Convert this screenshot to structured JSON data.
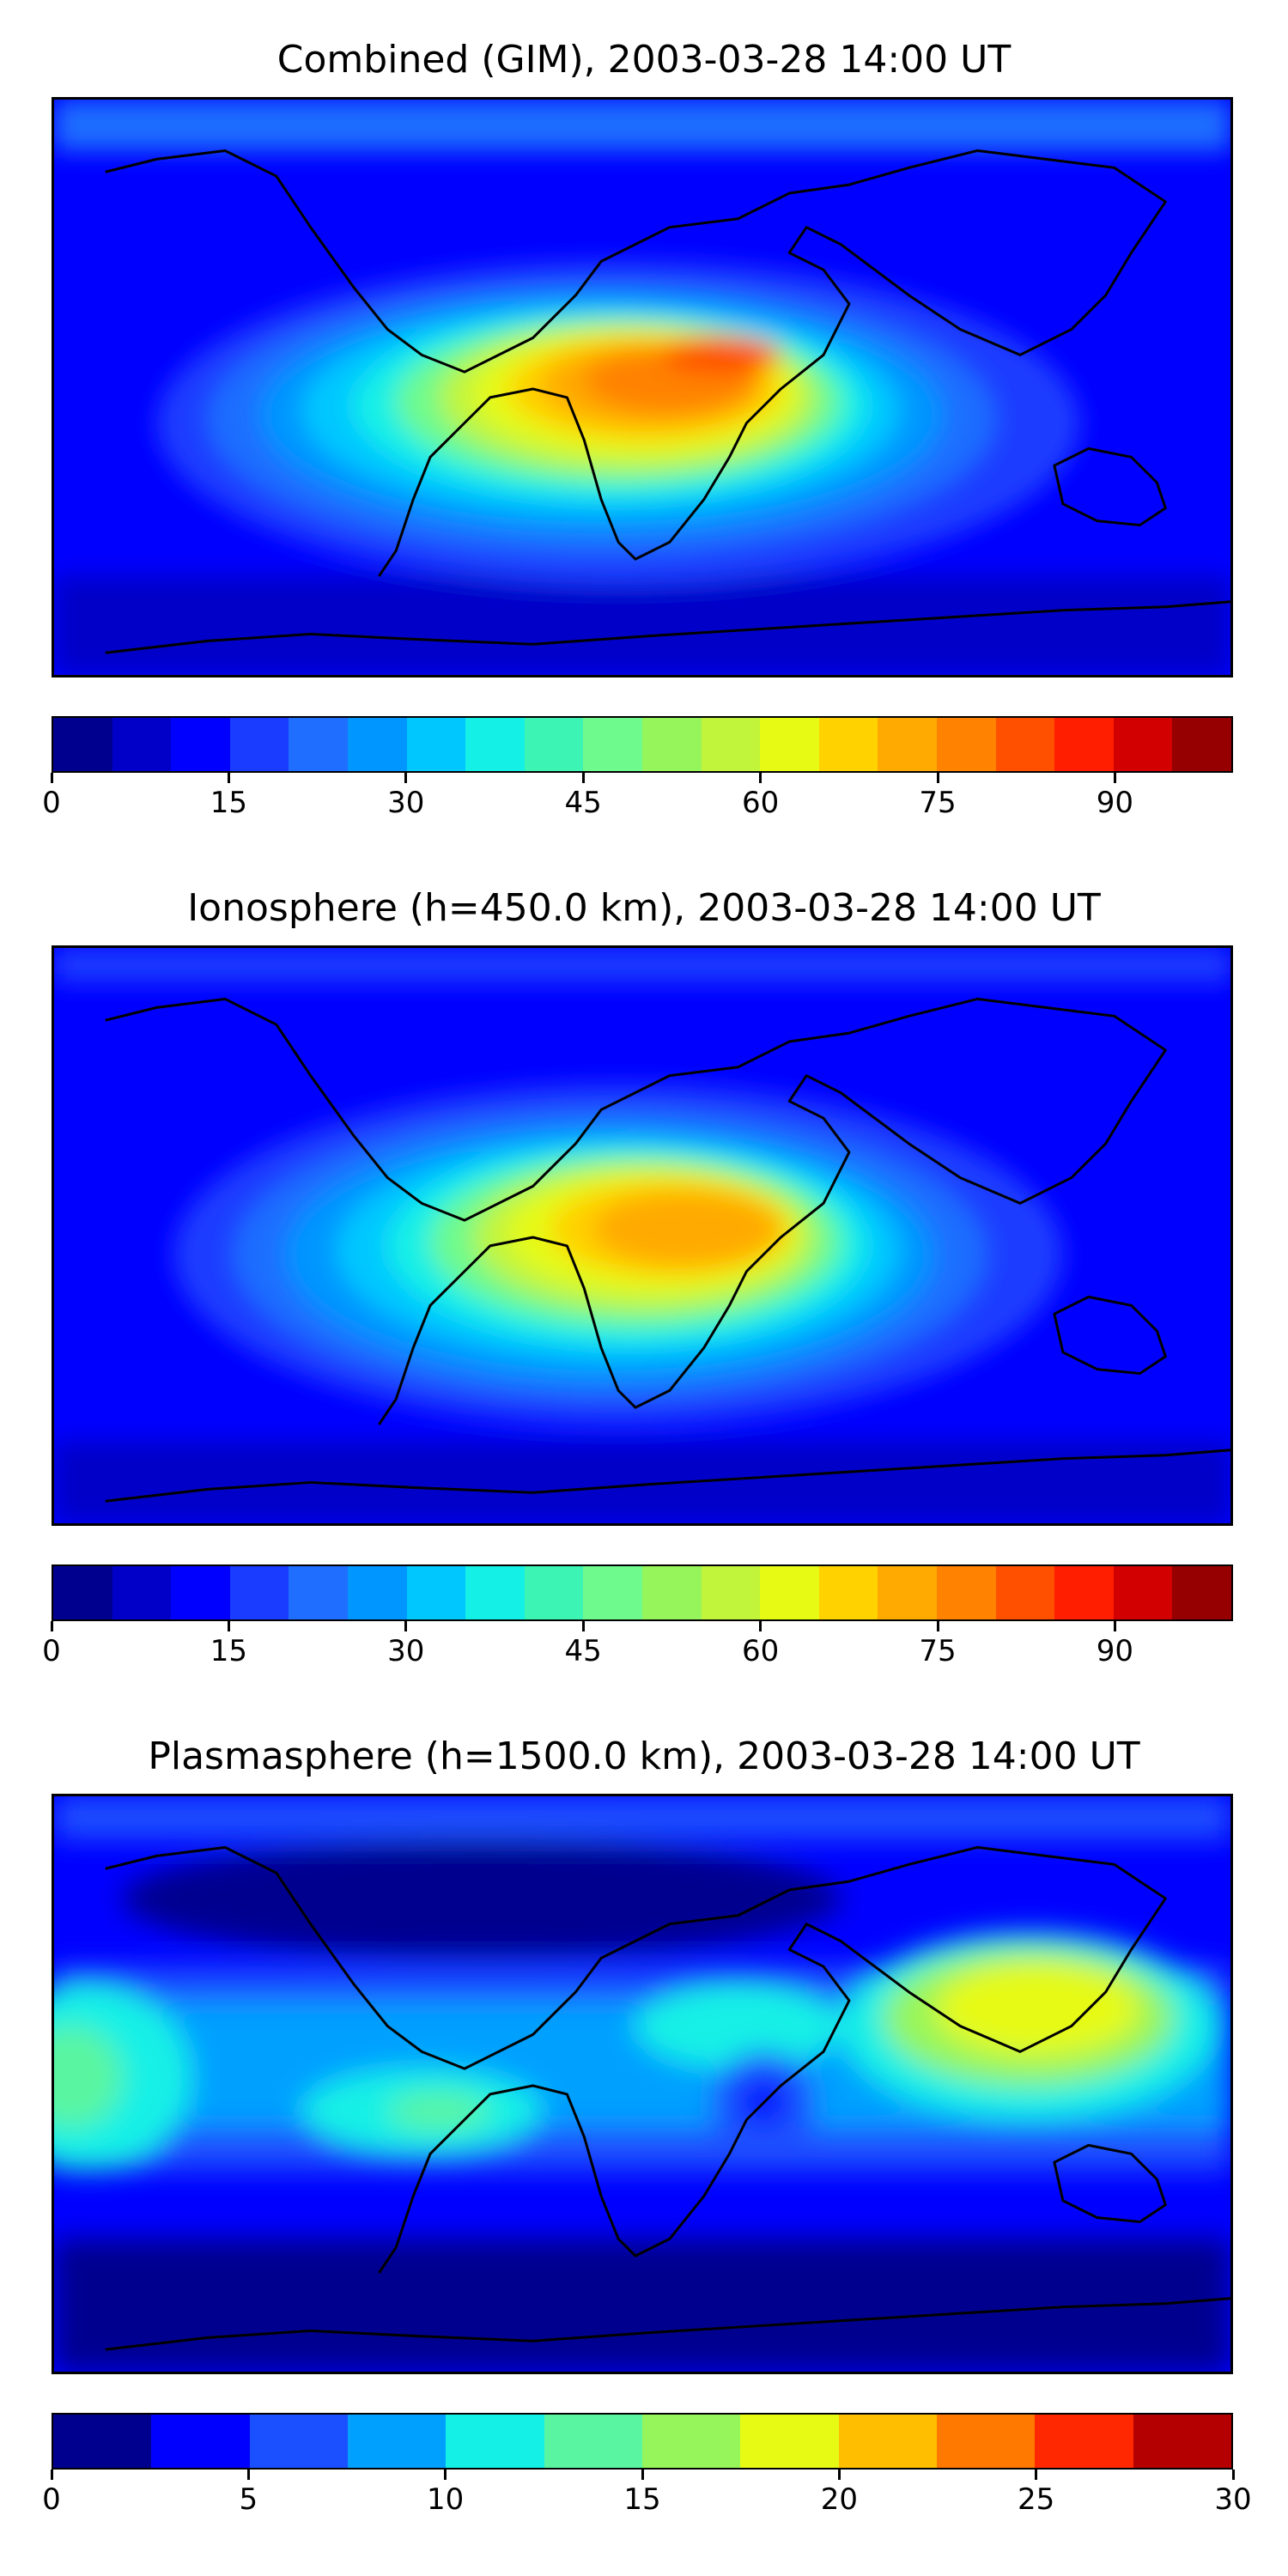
{
  "panels": [
    {
      "title": "Combined (GIM), 2003-03-28 14:00 UT",
      "colorbar": {
        "min": 0,
        "max": 100,
        "step": 5,
        "tick_labels": [
          "0",
          "15",
          "30",
          "45",
          "60",
          "75",
          "90"
        ],
        "tick_values": [
          0,
          15,
          30,
          45,
          60,
          75,
          90
        ]
      }
    },
    {
      "title": "Ionosphere  (h=450.0 km), 2003-03-28 14:00 UT",
      "colorbar": {
        "min": 0,
        "max": 100,
        "step": 5,
        "tick_labels": [
          "0",
          "15",
          "30",
          "45",
          "60",
          "75",
          "90"
        ],
        "tick_values": [
          0,
          15,
          30,
          45,
          60,
          75,
          90
        ]
      }
    },
    {
      "title": "Plasmasphere (h=1500.0 km), 2003-03-28 14:00 UT",
      "colorbar": {
        "min": 0,
        "max": 30,
        "step": 2.5,
        "tick_labels": [
          "0",
          "5",
          "10",
          "15",
          "20",
          "25",
          "30"
        ],
        "tick_values": [
          0,
          5,
          10,
          15,
          20,
          25,
          30
        ]
      }
    }
  ],
  "colors": {
    "jet20": [
      "#00008f",
      "#0000c8",
      "#0000ff",
      "#1a3cff",
      "#1f6eff",
      "#0096ff",
      "#00c8ff",
      "#14f0e6",
      "#3cf5b4",
      "#6efa8c",
      "#96f55a",
      "#c0f53c",
      "#e6fa14",
      "#ffd200",
      "#ffaa00",
      "#ff8200",
      "#ff5000",
      "#ff1e00",
      "#d20000",
      "#960000"
    ],
    "jet12": [
      "#00008f",
      "#0000ff",
      "#1a50ff",
      "#00a0ff",
      "#14f0e6",
      "#5af5a0",
      "#96f55a",
      "#e6fa14",
      "#ffbe00",
      "#ff7800",
      "#ff2800",
      "#b40000"
    ]
  }
}
